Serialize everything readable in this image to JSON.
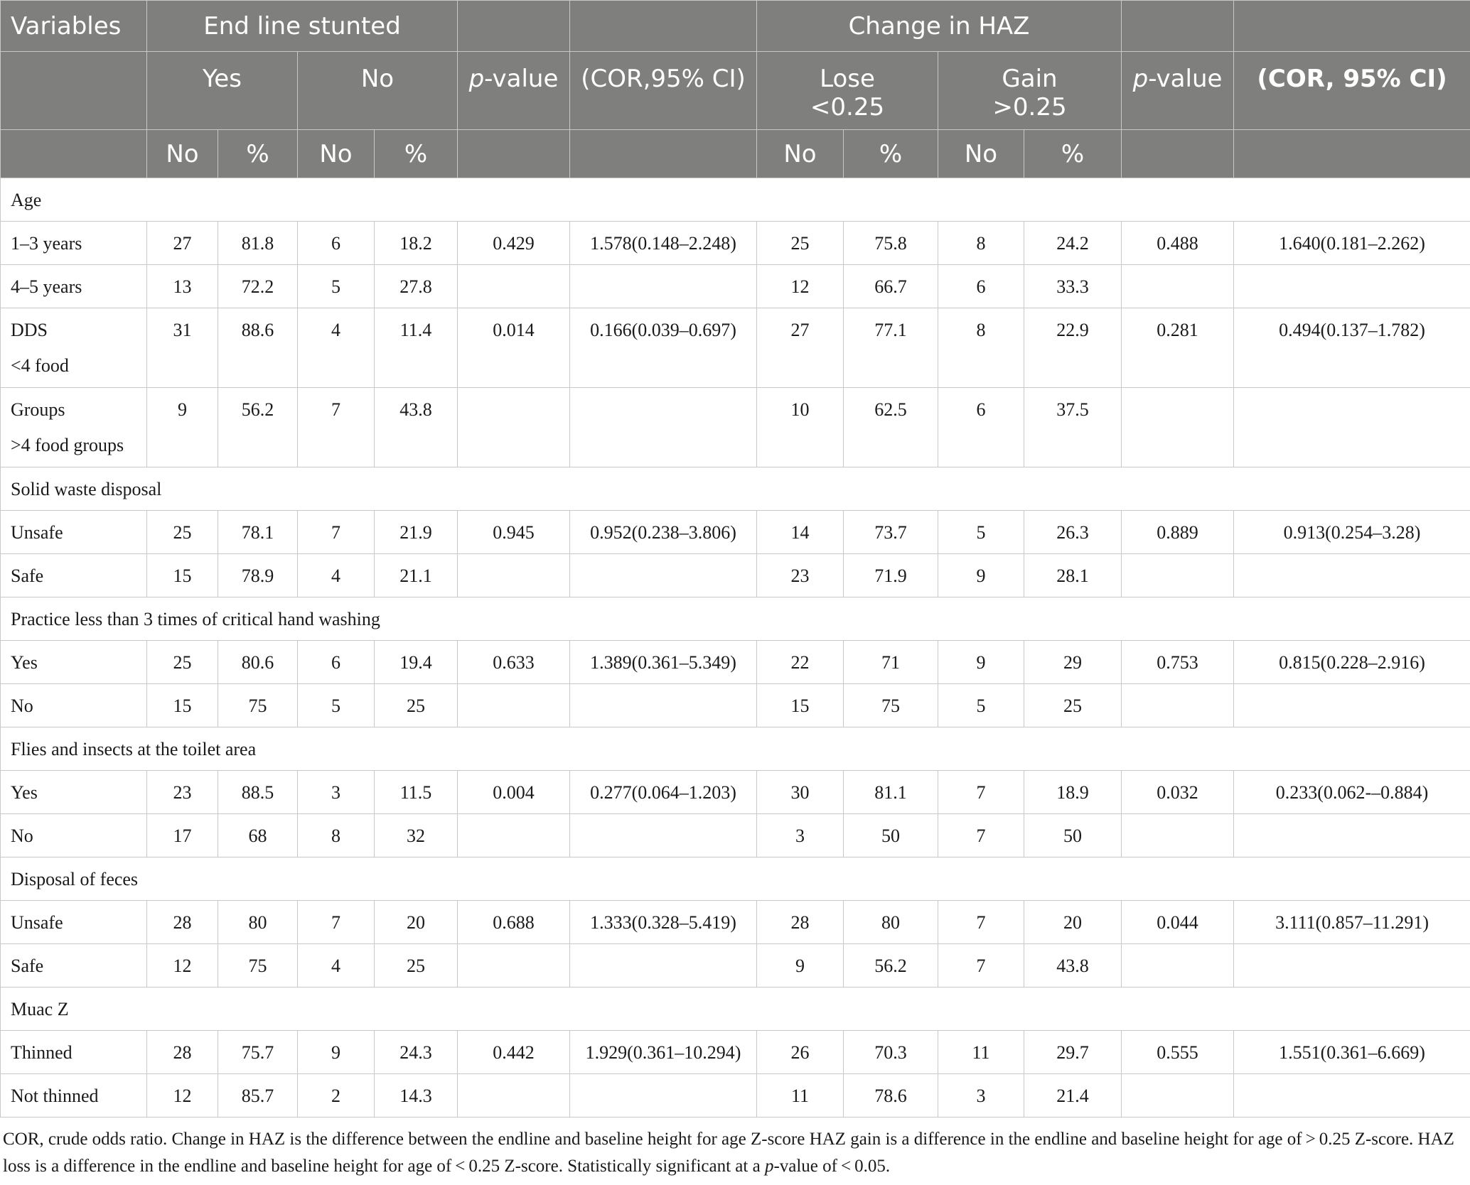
{
  "header": {
    "variables": "Variables",
    "endline_stunted": "End line stunted",
    "change_in_haz": "Change in HAZ",
    "yes": "Yes",
    "no": "No",
    "p_value_p": "p",
    "p_value_rest": "-value",
    "cor_ci_1": "(COR,95% CI)",
    "lose_1": "Lose",
    "lose_2": "<0.25",
    "gain_1": "Gain",
    "gain_2": ">0.25",
    "cor_ci_2": "(COR, 95% CI)",
    "sub_no": "No",
    "sub_pct": "%"
  },
  "sections": {
    "age": "Age",
    "solid_waste": "Solid waste disposal",
    "hand_washing": "Practice less than 3 times of critical hand washing",
    "flies": "Flies and insects at the toilet area",
    "feces": "Disposal of feces",
    "muac": "Muac Z"
  },
  "rows": [
    {
      "label": "1–3 years",
      "label2": "",
      "c": [
        "27",
        "81.8",
        "6",
        "18.2",
        "0.429",
        "1.578(0.148–2.248)",
        "25",
        "75.8",
        "8",
        "24.2",
        "0.488",
        "1.640(0.181–2.262)"
      ]
    },
    {
      "label": "4–5 years",
      "label2": "",
      "c": [
        "13",
        "72.2",
        "5",
        "27.8",
        "",
        "",
        "12",
        "66.7",
        "6",
        "33.3",
        "",
        ""
      ]
    },
    {
      "label": "DDS",
      "label2": "<4 food",
      "c": [
        "31",
        "88.6",
        "4",
        "11.4",
        "0.014",
        "0.166(0.039–0.697)",
        "27",
        "77.1",
        "8",
        "22.9",
        "0.281",
        "0.494(0.137–1.782)"
      ]
    },
    {
      "label": "Groups",
      "label2": ">4 food groups",
      "c": [
        "9",
        "56.2",
        "7",
        "43.8",
        "",
        "",
        "10",
        "62.5",
        "6",
        "37.5",
        "",
        ""
      ]
    },
    {
      "label": "Unsafe",
      "label2": "",
      "c": [
        "25",
        "78.1",
        "7",
        "21.9",
        "0.945",
        "0.952(0.238–3.806)",
        "14",
        "73.7",
        "5",
        "26.3",
        "0.889",
        "0.913(0.254–3.28)"
      ]
    },
    {
      "label": "Safe",
      "label2": "",
      "c": [
        "15",
        "78.9",
        "4",
        "21.1",
        "",
        "",
        "23",
        "71.9",
        "9",
        "28.1",
        "",
        ""
      ]
    },
    {
      "label": "Yes",
      "label2": "",
      "c": [
        "25",
        "80.6",
        "6",
        "19.4",
        "0.633",
        "1.389(0.361–5.349)",
        "22",
        "71",
        "9",
        "29",
        "0.753",
        "0.815(0.228–2.916)"
      ]
    },
    {
      "label": "No",
      "label2": "",
      "c": [
        "15",
        "75",
        "5",
        "25",
        "",
        "",
        "15",
        "75",
        "5",
        "25",
        "",
        ""
      ]
    },
    {
      "label": "Yes",
      "label2": "",
      "c": [
        "23",
        "88.5",
        "3",
        "11.5",
        "0.004",
        "0.277(0.064–1.203)",
        "30",
        "81.1",
        "7",
        "18.9",
        "0.032",
        "0.233(0.062-–0.884)"
      ]
    },
    {
      "label": "No",
      "label2": "",
      "c": [
        "17",
        "68",
        "8",
        "32",
        "",
        "",
        "3",
        "50",
        "7",
        "50",
        "",
        ""
      ]
    },
    {
      "label": "Unsafe",
      "label2": "",
      "c": [
        "28",
        "80",
        "7",
        "20",
        "0.688",
        "1.333(0.328–5.419)",
        "28",
        "80",
        "7",
        "20",
        "0.044",
        "3.111(0.857–11.291)"
      ]
    },
    {
      "label": "Safe",
      "label2": "",
      "c": [
        "12",
        "75",
        "4",
        "25",
        "",
        "",
        "9",
        "56.2",
        "7",
        "43.8",
        "",
        ""
      ]
    },
    {
      "label": "Thinned",
      "label2": "",
      "c": [
        "28",
        "75.7",
        "9",
        "24.3",
        "0.442",
        "1.929(0.361–10.294)",
        "26",
        "70.3",
        "11",
        "29.7",
        "0.555",
        "1.551(0.361–6.669)"
      ]
    },
    {
      "label": "Not thinned",
      "label2": "",
      "c": [
        "12",
        "85.7",
        "2",
        "14.3",
        "",
        "",
        "11",
        "78.6",
        "3",
        "21.4",
        "",
        ""
      ]
    }
  ],
  "footnote": {
    "part1": "COR, crude odds ratio. Change in HAZ is the difference between the endline and baseline height for age Z-score HAZ gain is a difference in the endline and baseline height for age of > 0.25 Z-score. HAZ loss is a difference in the endline and baseline height for age of < 0.25 Z-score. Statistically significant at a ",
    "italic": "p",
    "part2": "-value of < 0.05."
  }
}
